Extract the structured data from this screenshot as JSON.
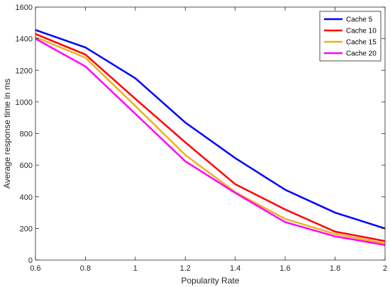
{
  "chart_data": {
    "type": "line",
    "xlabel": "Popularity Rate",
    "ylabel": "Average response time in ms",
    "xlim": [
      0.6,
      2
    ],
    "ylim": [
      0,
      1600
    ],
    "x": [
      0.6,
      0.8,
      1.0,
      1.2,
      1.4,
      1.6,
      1.8,
      2.0
    ],
    "x_tick_values": [
      0.6,
      0.8,
      1.0,
      1.2,
      1.4,
      1.6,
      1.8,
      2.0
    ],
    "x_tick_labels": [
      "0.6",
      "0.8",
      "1",
      "1.2",
      "1.4",
      "1.6",
      "1.8",
      "2"
    ],
    "y_tick_values": [
      0,
      200,
      400,
      600,
      800,
      1000,
      1200,
      1400,
      1600
    ],
    "y_tick_labels": [
      "0",
      "200",
      "400",
      "600",
      "800",
      "1000",
      "1200",
      "1400",
      "1600"
    ],
    "grid": false,
    "legend_position": "top-right",
    "series": [
      {
        "name": "Cache 5",
        "color": "#0000ff",
        "values": [
          1455,
          1345,
          1150,
          870,
          645,
          445,
          300,
          200
        ]
      },
      {
        "name": "Cache 10",
        "color": "#ff0000",
        "values": [
          1430,
          1300,
          1020,
          745,
          480,
          320,
          180,
          120
        ]
      },
      {
        "name": "Cache 15",
        "color": "#edb120",
        "values": [
          1410,
          1280,
          975,
          665,
          430,
          260,
          165,
          105
        ]
      },
      {
        "name": "Cache 20",
        "color": "#ff00ff",
        "values": [
          1400,
          1225,
          925,
          625,
          425,
          240,
          150,
          95
        ]
      }
    ]
  }
}
